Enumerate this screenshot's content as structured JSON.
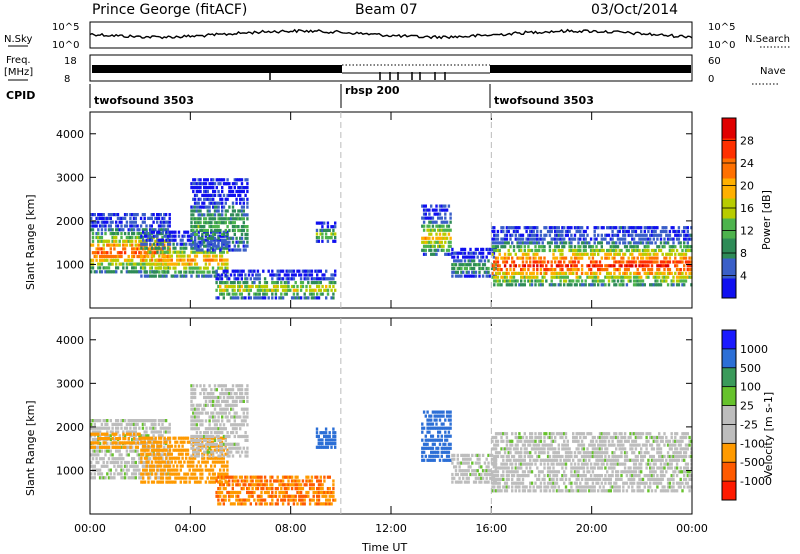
{
  "header": {
    "station": "Prince George (fitACF)",
    "beam": "Beam 07",
    "date": "03/Oct/2014"
  },
  "summary_labels": {
    "nsky": "N.Sky",
    "nsearch": "N.Search",
    "freq_line1": "Freq.",
    "freq_line2": "[MHz]",
    "nave": "Nave",
    "cpid": "CPID"
  },
  "summary_ticks": {
    "nsky_top": "10^5",
    "nsky_bottom": "10^0",
    "nsearch_top": "10^5",
    "nsearch_bottom": "10^0",
    "freq_top": "18",
    "freq_bottom": "8",
    "nave_top": "60",
    "nave_bottom": "0"
  },
  "cpid_segments": [
    {
      "label": "twofsound 3503",
      "start_hour": 0
    },
    {
      "label": "rbsp 200",
      "start_hour": 10
    },
    {
      "label": "twofsound 3503",
      "start_hour": 16
    }
  ],
  "colors": {
    "power": [
      "#1010f0",
      "#3a5fc8",
      "#2e8b57",
      "#4db34d",
      "#b8cc00",
      "#ffb000",
      "#ff7000",
      "#ff3000",
      "#e00000"
    ],
    "velocity": [
      "#1a1aff",
      "#2c6fd6",
      "#3a9a5a",
      "#66c22c",
      "#bdbdbd",
      "#bdbdbd",
      "#ff9a00",
      "#ff5a00",
      "#ff1a00"
    ]
  },
  "chart_data": [
    {
      "type": "heatmap",
      "panel": "power",
      "x_unit": "hours UT",
      "xlim": [
        0,
        24
      ],
      "ylim": [
        0,
        4500
      ],
      "ylabel": "Slant Range [km]",
      "yticks": [
        1000,
        2000,
        3000,
        4000
      ],
      "xticks": [
        0,
        4,
        8,
        12,
        16,
        20,
        24
      ],
      "xtick_labels": [
        "00:00",
        "04:00",
        "08:00",
        "12:00",
        "16:00",
        "20:00",
        "00:00"
      ],
      "colorbar": {
        "label": "Power [dB]",
        "min": 0,
        "max": 32,
        "ticks": [
          4,
          8,
          12,
          16,
          20,
          24,
          28
        ]
      },
      "echo_bands": [
        {
          "t_start": 0.0,
          "t_end": 3.2,
          "r_min": 800,
          "r_max": 2200,
          "peak_db": 26
        },
        {
          "t_start": 2.0,
          "t_end": 5.5,
          "r_min": 700,
          "r_max": 1800,
          "peak_db": 22
        },
        {
          "t_start": 4.0,
          "t_end": 6.3,
          "r_min": 1300,
          "r_max": 3000,
          "peak_db": 12
        },
        {
          "t_start": 5.0,
          "t_end": 9.8,
          "r_min": 200,
          "r_max": 900,
          "peak_db": 18
        },
        {
          "t_start": 9.0,
          "t_end": 9.8,
          "r_min": 1500,
          "r_max": 2000,
          "peak_db": 16
        },
        {
          "t_start": 13.2,
          "t_end": 14.4,
          "r_min": 1200,
          "r_max": 2400,
          "peak_db": 20
        },
        {
          "t_start": 14.4,
          "t_end": 16.2,
          "r_min": 700,
          "r_max": 1400,
          "peak_db": 12
        },
        {
          "t_start": 16.0,
          "t_end": 24.0,
          "r_min": 500,
          "r_max": 1900,
          "peak_db": 28
        }
      ]
    },
    {
      "type": "heatmap",
      "panel": "velocity",
      "x_unit": "hours UT",
      "xlim": [
        0,
        24
      ],
      "ylim": [
        0,
        4500
      ],
      "ylabel": "Slant Range [km]",
      "xlabel": "Time UT",
      "yticks": [
        1000,
        2000,
        3000,
        4000
      ],
      "xticks": [
        0,
        4,
        8,
        12,
        16,
        20,
        24
      ],
      "xtick_labels": [
        "00:00",
        "04:00",
        "08:00",
        "12:00",
        "16:00",
        "20:00",
        "00:00"
      ],
      "colorbar": {
        "label": "Velocity [m s-1]",
        "ticks": [
          1000,
          500,
          100,
          25,
          -25,
          -100,
          -500,
          -1000
        ]
      },
      "echo_bands": [
        {
          "t_start": 0.0,
          "t_end": 3.2,
          "r_min": 800,
          "r_max": 2200,
          "velocity": 0
        },
        {
          "t_start": 0.0,
          "t_end": 2.0,
          "r_min": 1500,
          "r_max": 1900,
          "velocity": -200
        },
        {
          "t_start": 2.0,
          "t_end": 5.5,
          "r_min": 700,
          "r_max": 1800,
          "velocity": -150
        },
        {
          "t_start": 4.0,
          "t_end": 6.3,
          "r_min": 1300,
          "r_max": 3000,
          "velocity": 0
        },
        {
          "t_start": 5.0,
          "t_end": 9.8,
          "r_min": 200,
          "r_max": 900,
          "velocity": -300
        },
        {
          "t_start": 9.0,
          "t_end": 9.8,
          "r_min": 1500,
          "r_max": 2000,
          "velocity": 150
        },
        {
          "t_start": 13.2,
          "t_end": 14.4,
          "r_min": 1200,
          "r_max": 2400,
          "velocity": 200
        },
        {
          "t_start": 14.4,
          "t_end": 16.2,
          "r_min": 700,
          "r_max": 1400,
          "velocity": 0
        },
        {
          "t_start": 16.0,
          "t_end": 24.0,
          "r_min": 500,
          "r_max": 1900,
          "velocity": 0
        }
      ]
    }
  ]
}
